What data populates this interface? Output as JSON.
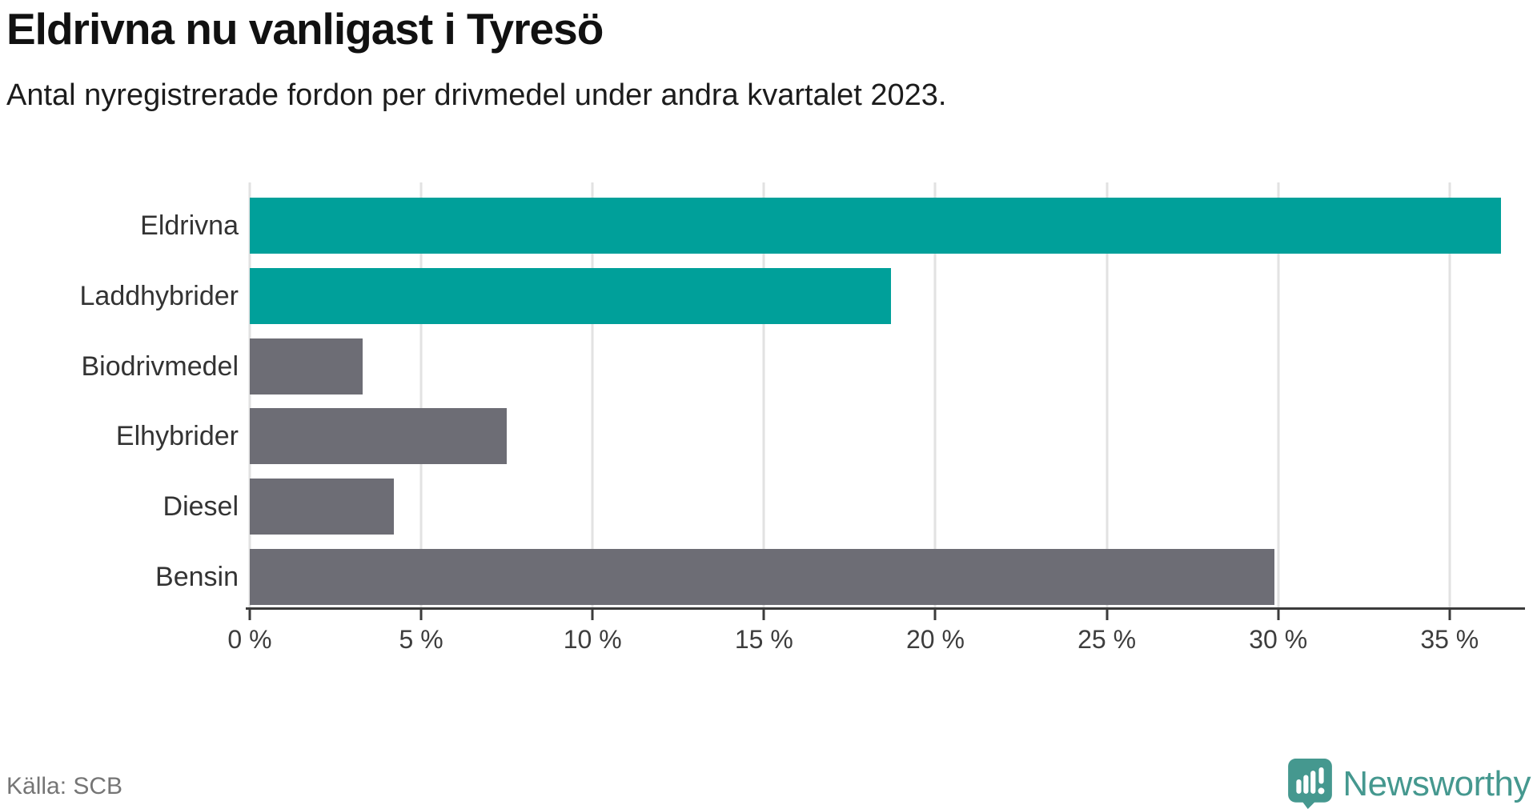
{
  "header": {
    "title": "Eldrivna nu vanligast i Tyresö",
    "subtitle": "Antal nyregistrerade fordon per drivmedel under andra kvartalet 2023."
  },
  "chart_data": {
    "type": "bar",
    "orientation": "horizontal",
    "title": "Eldrivna nu vanligast i Tyresö",
    "subtitle": "Antal nyregistrerade fordon per drivmedel under andra kvartalet 2023.",
    "categories": [
      "Eldrivna",
      "Laddhybrider",
      "Biodrivmedel",
      "Elhybrider",
      "Diesel",
      "Bensin"
    ],
    "values": [
      36.5,
      18.7,
      3.3,
      7.5,
      4.2,
      29.9
    ],
    "unit": "%",
    "bar_colors": [
      "#00a09a",
      "#00a09a",
      "#6d6d75",
      "#6d6d75",
      "#6d6d75",
      "#6d6d75"
    ],
    "xlim": [
      0,
      37.2
    ],
    "x_ticks": [
      0,
      5,
      10,
      15,
      20,
      25,
      30,
      35
    ],
    "x_tick_labels": [
      "0 %",
      "5 %",
      "10 %",
      "15 %",
      "20 %",
      "25 %",
      "30 %",
      "35 %"
    ],
    "grid": true,
    "legend": false,
    "xlabel": "",
    "ylabel": ""
  },
  "footer": {
    "source": "Källa: SCB",
    "brand": "Newsworthy"
  },
  "colors": {
    "accent_teal": "#00a09a",
    "bar_gray": "#6d6d75",
    "gridline": "#e2e2e2",
    "axis": "#3b3b3b",
    "logo_teal": "#45988f",
    "source_text": "#757575"
  }
}
